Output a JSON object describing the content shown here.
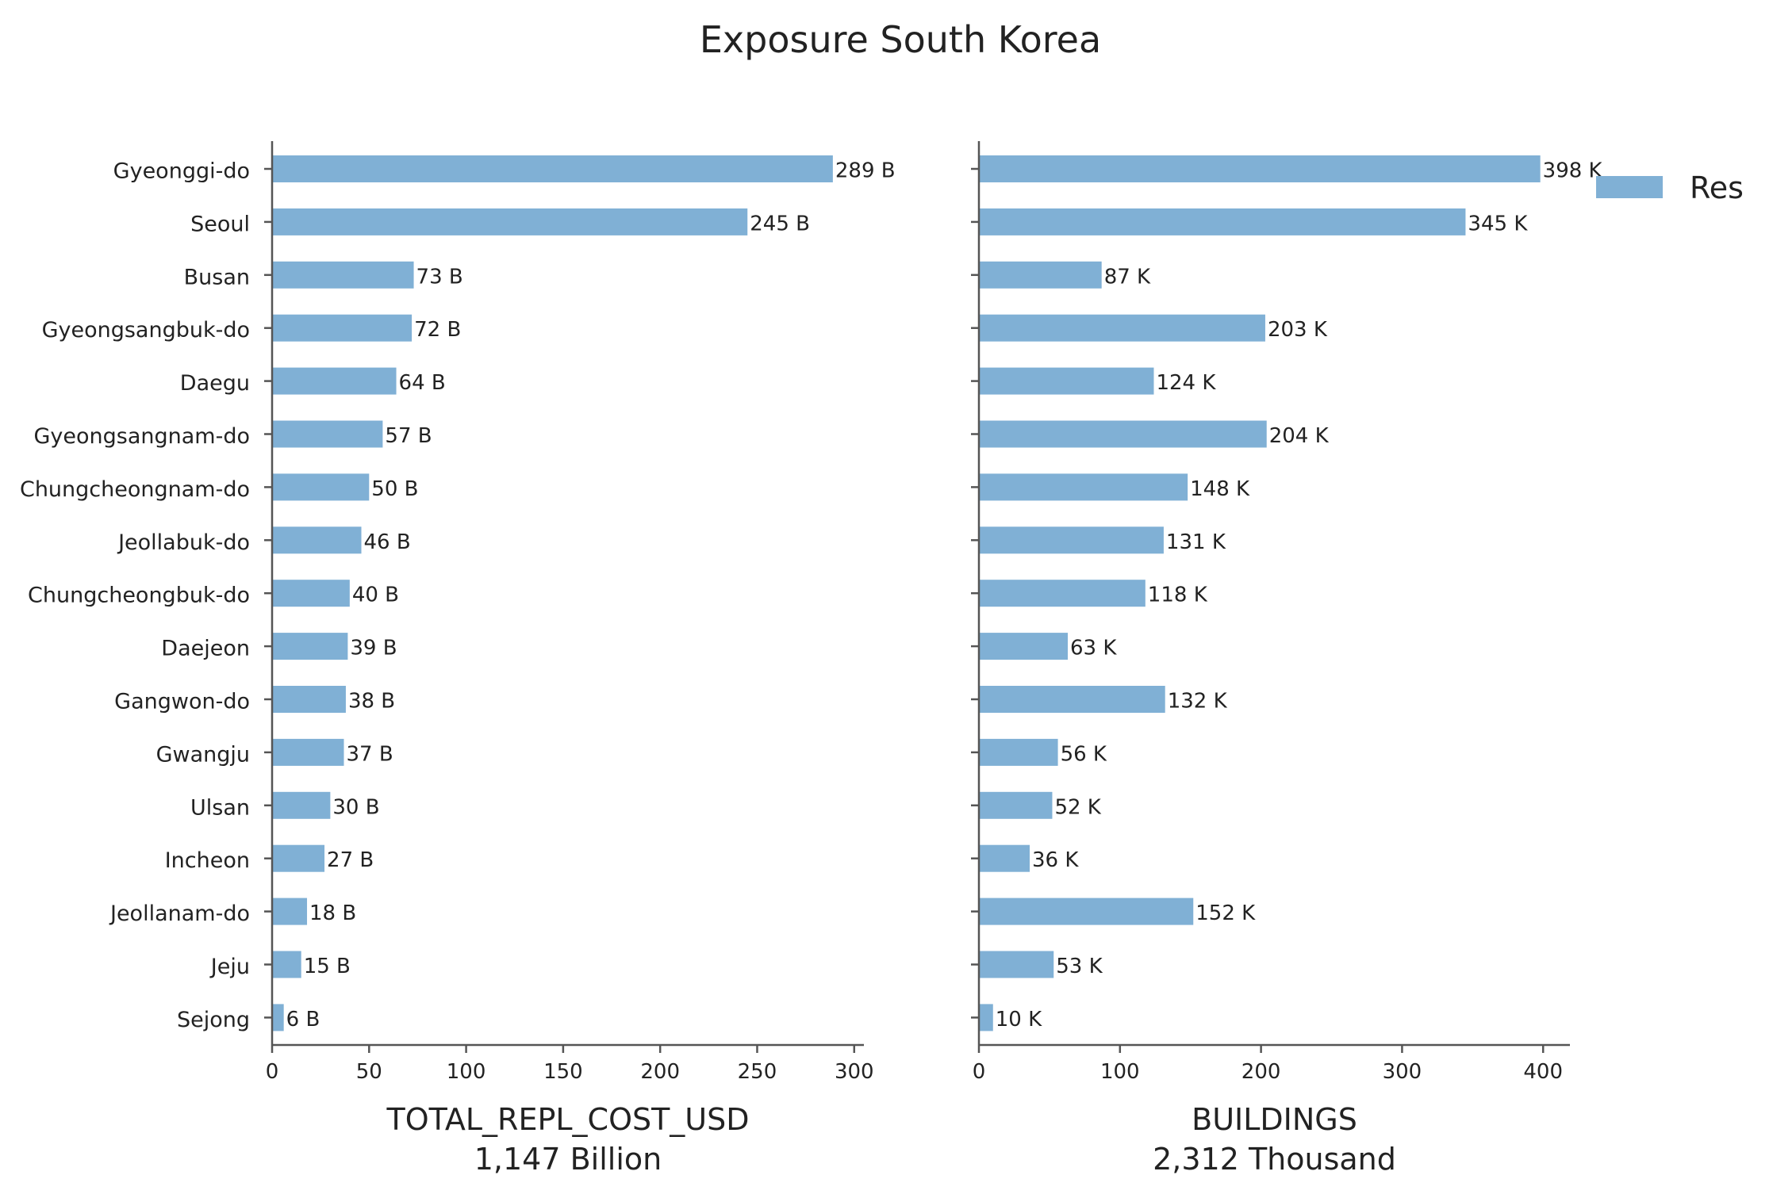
{
  "title": "Exposure South Korea",
  "legend": {
    "label": "Res",
    "position": "top-right"
  },
  "colors": {
    "bar": "#80b0d5",
    "axis": "#555555",
    "text": "#222222"
  },
  "chart_data": [
    {
      "type": "bar",
      "orientation": "horizontal",
      "categories": [
        "Gyeonggi-do",
        "Seoul",
        "Busan",
        "Gyeongsangbuk-do",
        "Daegu",
        "Gyeongsangnam-do",
        "Chungcheongnam-do",
        "Jeollabuk-do",
        "Chungcheongbuk-do",
        "Daejeon",
        "Gangwon-do",
        "Gwangju",
        "Ulsan",
        "Incheon",
        "Jeollanam-do",
        "Jeju",
        "Sejong"
      ],
      "series": [
        {
          "name": "Res",
          "values": [
            289,
            245,
            73,
            72,
            64,
            57,
            50,
            46,
            40,
            39,
            38,
            37,
            30,
            27,
            18,
            15,
            6
          ]
        }
      ],
      "data_labels": [
        "289 B",
        "245 B",
        "73 B",
        "72 B",
        "64 B",
        "57 B",
        "50 B",
        "46 B",
        "40 B",
        "39 B",
        "38 B",
        "37 B",
        "30 B",
        "27 B",
        "18 B",
        "15 B",
        "6 B"
      ],
      "xlabel": "TOTAL_REPL_COST_USD",
      "xlabel_sub": "1,147 Billion",
      "xlim": [
        0,
        305
      ],
      "xticks": [
        0,
        50,
        100,
        150,
        200,
        250,
        300
      ],
      "show_category_labels": true,
      "grid": false
    },
    {
      "type": "bar",
      "orientation": "horizontal",
      "categories": [
        "Gyeonggi-do",
        "Seoul",
        "Busan",
        "Gyeongsangbuk-do",
        "Daegu",
        "Gyeongsangnam-do",
        "Chungcheongnam-do",
        "Jeollabuk-do",
        "Chungcheongbuk-do",
        "Daejeon",
        "Gangwon-do",
        "Gwangju",
        "Ulsan",
        "Incheon",
        "Jeollanam-do",
        "Jeju",
        "Sejong"
      ],
      "series": [
        {
          "name": "Res",
          "values": [
            398,
            345,
            87,
            203,
            124,
            204,
            148,
            131,
            118,
            63,
            132,
            56,
            52,
            36,
            152,
            53,
            10
          ]
        }
      ],
      "data_labels": [
        "398 K",
        "345 K",
        "87 K",
        "203 K",
        "124 K",
        "204 K",
        "148 K",
        "131 K",
        "118 K",
        "63 K",
        "132 K",
        "56 K",
        "52 K",
        "36 K",
        "152 K",
        "53 K",
        "10 K"
      ],
      "xlabel": "BUILDINGS",
      "xlabel_sub": "2,312 Thousand",
      "xlim": [
        0,
        419
      ],
      "xticks": [
        0,
        100,
        200,
        300,
        400
      ],
      "show_category_labels": false,
      "grid": false
    }
  ]
}
